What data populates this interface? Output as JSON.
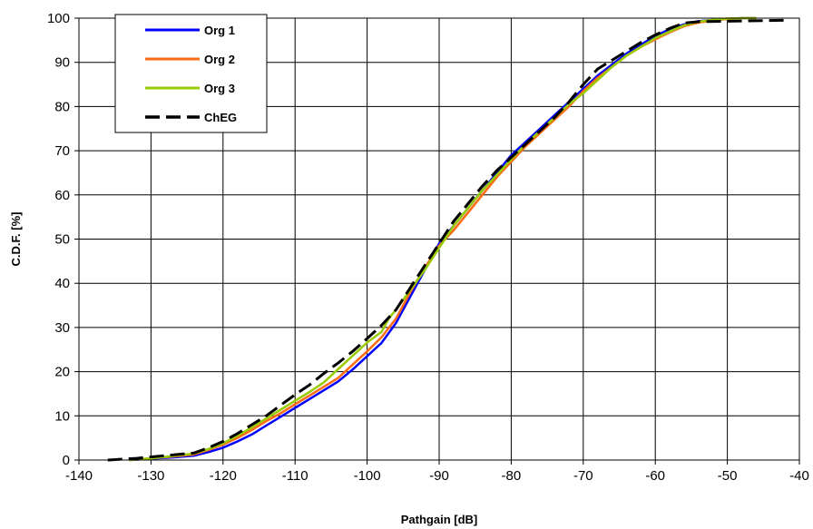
{
  "chart_data": {
    "type": "line",
    "title": "",
    "xlabel": "Pathgain [dB]",
    "ylabel": "C.D.F. [%]",
    "xlim": [
      -140,
      -40
    ],
    "ylim": [
      0,
      100
    ],
    "xticks": [
      -140,
      -130,
      -120,
      -110,
      -100,
      -90,
      -80,
      -70,
      -60,
      -50,
      -40
    ],
    "yticks": [
      0,
      10,
      20,
      30,
      40,
      50,
      60,
      70,
      80,
      90,
      100
    ],
    "grid": true,
    "legend_position": "top-left",
    "series": [
      {
        "name": "Org 1",
        "color": "#0000ff",
        "dash": "solid",
        "x": [
          -133,
          -130,
          -127,
          -124,
          -122,
          -120,
          -118,
          -116,
          -114,
          -112,
          -110,
          -108,
          -106,
          -104,
          -102,
          -100,
          -98,
          -96,
          -94,
          -92,
          -90,
          -88,
          -86,
          -84,
          -82,
          -80,
          -78,
          -76,
          -74,
          -72,
          -70,
          -68,
          -66,
          -64,
          -62,
          -60,
          -58,
          -56,
          -54,
          -52,
          -50,
          -48,
          -46
        ],
        "y": [
          0,
          0.3,
          0.6,
          1,
          1.8,
          2.8,
          4.2,
          5.8,
          7.8,
          9.8,
          11.8,
          13.8,
          15.8,
          17.8,
          20.5,
          23.5,
          26.5,
          31,
          37,
          43,
          49,
          53,
          57,
          61,
          65,
          69,
          72,
          75,
          78,
          81,
          84,
          87,
          89.5,
          92,
          94,
          96,
          97.5,
          98.6,
          99.3,
          99.6,
          99.8,
          100,
          100
        ]
      },
      {
        "name": "Org 2",
        "color": "#ff6a13",
        "dash": "solid",
        "x": [
          -133,
          -130,
          -127,
          -124,
          -122,
          -120,
          -118,
          -116,
          -114,
          -112,
          -110,
          -108,
          -106,
          -104,
          -102,
          -100,
          -98,
          -96,
          -94,
          -92,
          -90,
          -88,
          -86,
          -84,
          -82,
          -80,
          -78,
          -76,
          -74,
          -72,
          -70,
          -68,
          -66,
          -64,
          -62,
          -60,
          -58,
          -56,
          -54,
          -52,
          -50,
          -48,
          -46
        ],
        "y": [
          0,
          0.4,
          0.8,
          1.3,
          2.3,
          3.5,
          5,
          6.8,
          8.8,
          10.6,
          12.6,
          14.6,
          16.6,
          18.6,
          21.6,
          24.6,
          27.8,
          32,
          38,
          43.5,
          48.5,
          52,
          56,
          60,
          64,
          67.5,
          71,
          74,
          77,
          80,
          83.5,
          86.5,
          89,
          91.5,
          93.5,
          95.2,
          96.8,
          98.2,
          99,
          99.5,
          99.8,
          100,
          100
        ]
      },
      {
        "name": "Org 3",
        "color": "#99cc00",
        "dash": "solid",
        "x": [
          -133,
          -130,
          -127,
          -124,
          -122,
          -120,
          -118,
          -116,
          -114,
          -112,
          -110,
          -108,
          -106,
          -104,
          -102,
          -100,
          -98,
          -97,
          -96,
          -94,
          -92,
          -90,
          -88,
          -86,
          -84,
          -82,
          -80,
          -78,
          -76,
          -74,
          -72,
          -70,
          -68,
          -66,
          -64,
          -62,
          -60,
          -58,
          -56,
          -54,
          -52,
          -50,
          -48,
          -46
        ],
        "y": [
          0,
          0.4,
          0.9,
          1.5,
          2.5,
          3.8,
          5.5,
          7.4,
          9.4,
          11.4,
          13.4,
          15.4,
          17.6,
          20.6,
          23.6,
          26.6,
          29,
          32,
          34,
          38.5,
          43,
          48,
          53,
          57,
          61,
          64.5,
          68,
          71.5,
          74.5,
          77.5,
          80.5,
          83,
          86,
          89,
          91.5,
          93.5,
          95.5,
          97,
          98.4,
          99.2,
          99.6,
          99.9,
          100,
          100
        ]
      },
      {
        "name": "ChEG",
        "color": "#000000",
        "dash": "dashed",
        "x": [
          -136,
          -132,
          -128,
          -124,
          -122,
          -120,
          -118,
          -116,
          -114,
          -112,
          -110,
          -108,
          -106,
          -104,
          -102,
          -100,
          -98,
          -96,
          -94,
          -92,
          -90,
          -88,
          -86,
          -84,
          -82,
          -80,
          -78,
          -76,
          -74,
          -72,
          -70,
          -68,
          -66,
          -64,
          -62,
          -60,
          -58,
          -56,
          -54,
          -50,
          -46,
          -42
        ],
        "y": [
          0,
          0.4,
          1,
          1.6,
          2.8,
          4.2,
          6,
          8,
          10,
          12.4,
          14.8,
          17,
          19.6,
          22,
          24.6,
          27.5,
          30.5,
          34,
          39,
          44,
          49,
          54,
          58,
          62,
          65.5,
          68.5,
          71.5,
          74.5,
          77.5,
          81,
          85,
          88.5,
          90.5,
          92.5,
          94.5,
          96.2,
          97.7,
          98.9,
          99.2,
          99.3,
          99.4,
          99.5
        ]
      }
    ]
  }
}
